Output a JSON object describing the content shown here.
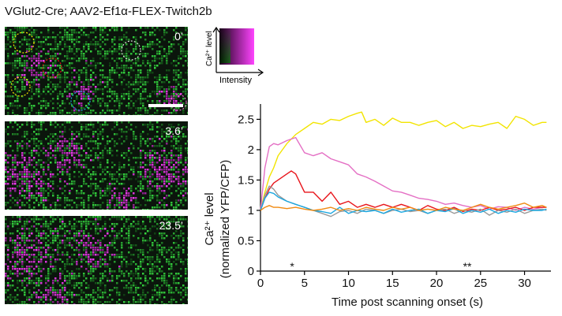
{
  "figure_title": "VGlut2-Cre; AAV2-Ef1α-FLEX-Twitch2b",
  "panels": [
    {
      "time_label": "0’"
    },
    {
      "time_label": "3.6’"
    },
    {
      "time_label": "23.5’"
    }
  ],
  "legend": {
    "y_label": "Ca²⁺ level",
    "x_label": "Intensity"
  },
  "colors": {
    "yellow": "#f2e400",
    "pink": "#e46fc4",
    "red": "#e8141a",
    "cyan": "#1ba7e0",
    "gray": "#9a9a9a",
    "orange": "#f08a12"
  },
  "chart_data": {
    "type": "line",
    "xlabel": "Time post scanning onset (s)",
    "ylabel_line1": "Ca²⁺ level",
    "ylabel_line2": "(normalized YFP/CFP)",
    "xlim": [
      0,
      33
    ],
    "ylim": [
      0,
      2.7
    ],
    "x_ticks": [
      0,
      5,
      10,
      15,
      20,
      25,
      30
    ],
    "y_ticks": [
      0,
      0.5,
      1,
      1.5,
      2,
      2.5
    ],
    "y_tick_labels": [
      "0",
      "0.5",
      "1",
      "1.5",
      "2",
      "2.5"
    ],
    "annotations": [
      {
        "x": 3.6,
        "y": 0.05,
        "text": "*"
      },
      {
        "x": 23.5,
        "y": 0.05,
        "text": "**"
      }
    ],
    "series": [
      {
        "name": "yellow",
        "color": "#f2e400",
        "x": [
          0,
          0.5,
          1,
          1.5,
          2,
          2.5,
          3,
          4,
          5,
          6,
          7,
          8,
          9,
          10,
          11,
          11.5,
          12,
          13,
          14,
          15,
          16,
          17,
          18,
          19,
          20,
          21,
          22,
          23,
          24,
          25,
          26,
          27,
          28,
          29,
          30,
          31,
          32,
          32.5
        ],
        "y": [
          1.0,
          1.3,
          1.55,
          1.7,
          1.9,
          2.0,
          2.1,
          2.25,
          2.35,
          2.45,
          2.42,
          2.5,
          2.48,
          2.55,
          2.6,
          2.62,
          2.45,
          2.5,
          2.4,
          2.52,
          2.45,
          2.45,
          2.4,
          2.45,
          2.48,
          2.38,
          2.45,
          2.35,
          2.4,
          2.38,
          2.42,
          2.45,
          2.35,
          2.55,
          2.5,
          2.4,
          2.45,
          2.45
        ]
      },
      {
        "name": "pink",
        "color": "#e46fc4",
        "x": [
          0,
          0.5,
          1,
          1.5,
          2,
          3,
          4,
          5,
          6,
          7,
          8,
          9,
          10,
          11,
          12,
          13,
          14,
          15,
          16,
          17,
          18,
          19,
          20,
          21,
          22,
          23,
          24,
          25,
          26,
          27,
          28,
          29,
          30,
          31,
          32,
          32.5
        ],
        "y": [
          1.0,
          1.7,
          2.05,
          2.1,
          2.08,
          2.15,
          2.2,
          1.95,
          1.9,
          1.95,
          1.85,
          1.8,
          1.75,
          1.6,
          1.55,
          1.48,
          1.4,
          1.32,
          1.3,
          1.25,
          1.2,
          1.18,
          1.15,
          1.1,
          1.12,
          1.08,
          1.05,
          1.08,
          1.02,
          1.06,
          1.05,
          1.0,
          1.05,
          1.02,
          1.05,
          1.05
        ]
      },
      {
        "name": "red",
        "color": "#e8141a",
        "x": [
          0,
          0.5,
          1,
          1.5,
          2,
          3,
          3.5,
          4,
          4.5,
          5,
          6,
          7,
          8,
          9,
          10,
          11,
          12,
          13,
          14,
          15,
          16,
          17,
          18,
          19,
          20,
          21,
          22,
          23,
          24,
          25,
          26,
          27,
          28,
          29,
          30,
          31,
          32,
          32.5
        ],
        "y": [
          1.0,
          1.2,
          1.35,
          1.45,
          1.5,
          1.6,
          1.65,
          1.6,
          1.45,
          1.3,
          1.3,
          1.15,
          1.3,
          1.1,
          1.15,
          1.05,
          1.1,
          1.05,
          1.1,
          1.05,
          1.1,
          1.05,
          1.0,
          1.08,
          1.02,
          1.0,
          1.05,
          0.98,
          1.02,
          1.0,
          1.05,
          1.0,
          1.02,
          1.05,
          1.0,
          1.05,
          1.05,
          1.05
        ]
      },
      {
        "name": "gray",
        "color": "#9a9a9a",
        "x": [
          0,
          0.5,
          1,
          1.5,
          2,
          3,
          4,
          5,
          6,
          7,
          8,
          9,
          10,
          11,
          12,
          13,
          14,
          15,
          16,
          17,
          18,
          19,
          20,
          21,
          22,
          23,
          24,
          25,
          26,
          27,
          28,
          29,
          30,
          31,
          32,
          32.5
        ],
        "y": [
          1.0,
          1.25,
          1.4,
          1.35,
          1.25,
          1.15,
          1.1,
          1.05,
          1.0,
          0.95,
          0.9,
          0.98,
          1.0,
          0.95,
          1.02,
          1.0,
          0.95,
          1.0,
          1.02,
          0.98,
          1.0,
          0.95,
          1.0,
          1.02,
          0.95,
          1.0,
          0.97,
          1.02,
          0.92,
          1.0,
          0.97,
          1.02,
          0.95,
          1.0,
          1.02,
          1.0
        ]
      },
      {
        "name": "cyan",
        "color": "#1ba7e0",
        "x": [
          0,
          0.5,
          1,
          1.5,
          2,
          3,
          4,
          5,
          6,
          7,
          8,
          9,
          10,
          11,
          12,
          13,
          14,
          15,
          16,
          17,
          18,
          19,
          20,
          21,
          22,
          23,
          24,
          25,
          26,
          27,
          28,
          29,
          30,
          31,
          32,
          32.5
        ],
        "y": [
          1.0,
          1.2,
          1.3,
          1.28,
          1.22,
          1.15,
          1.1,
          1.05,
          1.0,
          0.98,
          0.95,
          1.05,
          0.95,
          1.0,
          0.98,
          1.0,
          0.95,
          1.02,
          0.97,
          1.0,
          1.02,
          0.95,
          1.0,
          0.98,
          1.03,
          0.95,
          1.0,
          0.97,
          1.02,
          0.95,
          1.0,
          0.97,
          1.02,
          1.0,
          1.0,
          1.02
        ]
      },
      {
        "name": "orange",
        "color": "#f08a12",
        "x": [
          0,
          0.5,
          1,
          1.5,
          2,
          3,
          4,
          5,
          6,
          7,
          8,
          9,
          10,
          11,
          12,
          13,
          14,
          15,
          16,
          17,
          18,
          19,
          20,
          21,
          22,
          23,
          24,
          25,
          26,
          27,
          28,
          29,
          30,
          31,
          32,
          32.5
        ],
        "y": [
          1.0,
          1.05,
          1.08,
          1.05,
          1.05,
          1.03,
          1.05,
          1.02,
          1.0,
          1.02,
          1.05,
          1.0,
          1.03,
          1.0,
          1.05,
          1.02,
          1.0,
          1.05,
          1.02,
          1.05,
          1.0,
          1.02,
          1.0,
          1.05,
          1.02,
          1.0,
          1.05,
          1.1,
          1.05,
          1.02,
          1.05,
          1.08,
          1.12,
          1.05,
          1.08,
          1.05
        ]
      }
    ]
  }
}
